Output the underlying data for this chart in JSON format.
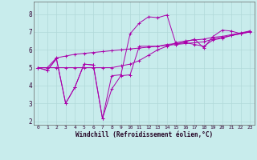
{
  "xlabel": "Windchill (Refroidissement éolien,°C)",
  "background_color": "#c8ecec",
  "grid_color": "#b0d8d8",
  "line_color": "#aa00aa",
  "xlim": [
    -0.5,
    23.5
  ],
  "ylim": [
    1.8,
    8.7
  ],
  "yticks": [
    2,
    3,
    4,
    5,
    6,
    7,
    8
  ],
  "xticks": [
    0,
    1,
    2,
    3,
    4,
    5,
    6,
    7,
    8,
    9,
    10,
    11,
    12,
    13,
    14,
    15,
    16,
    17,
    18,
    19,
    20,
    21,
    22,
    23
  ],
  "lines": [
    [
      5.0,
      4.85,
      5.5,
      3.0,
      3.9,
      5.2,
      5.15,
      2.15,
      3.8,
      4.55,
      4.6,
      6.2,
      6.2,
      6.2,
      6.3,
      6.35,
      6.4,
      6.3,
      6.2,
      6.55,
      6.65,
      6.8,
      6.9,
      7.0
    ],
    [
      5.0,
      4.85,
      5.5,
      3.0,
      3.9,
      5.2,
      5.15,
      2.15,
      4.55,
      4.6,
      6.9,
      7.5,
      7.85,
      7.8,
      7.95,
      6.3,
      6.45,
      6.6,
      6.1,
      6.75,
      7.1,
      7.05,
      6.9,
      7.05
    ],
    [
      5.0,
      5.0,
      5.55,
      5.65,
      5.75,
      5.8,
      5.85,
      5.9,
      5.95,
      6.0,
      6.05,
      6.1,
      6.15,
      6.2,
      6.25,
      6.3,
      6.35,
      6.4,
      6.45,
      6.6,
      6.7,
      6.8,
      6.9,
      7.0
    ],
    [
      5.0,
      5.0,
      5.0,
      5.0,
      5.0,
      5.0,
      5.0,
      5.0,
      5.0,
      5.1,
      5.2,
      5.4,
      5.7,
      6.0,
      6.2,
      6.4,
      6.5,
      6.55,
      6.6,
      6.7,
      6.75,
      6.85,
      6.95,
      7.05
    ]
  ]
}
